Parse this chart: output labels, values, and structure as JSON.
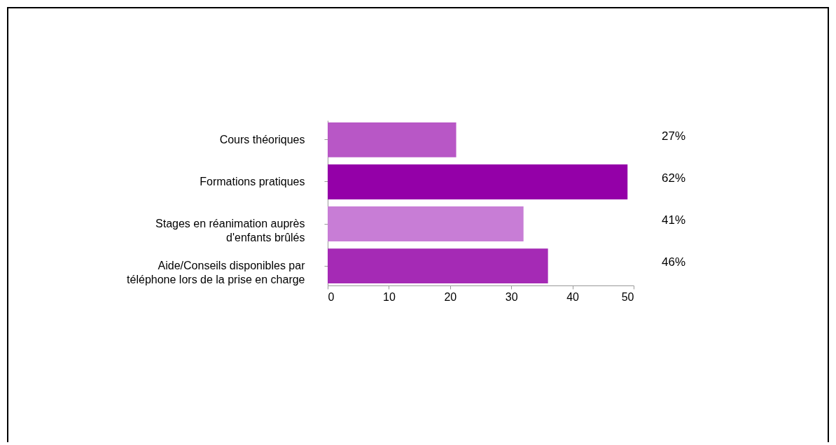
{
  "chart_data": {
    "type": "bar",
    "orientation": "horizontal",
    "categories": [
      "Cours théoriques",
      "Formations pratiques",
      "Stages en réanimation auprès d'enfants brûlés",
      "Aide/Conseils disponibles par téléphone lors de la prise en charge"
    ],
    "values": [
      21,
      49,
      32,
      36
    ],
    "colors": [
      "#b857c6",
      "#9400a8",
      "#c87dd6",
      "#a52ab5"
    ],
    "annotations": [
      "27%",
      "62%",
      "41%",
      "46%"
    ],
    "xlim": [
      0,
      50
    ],
    "xticks": [
      0,
      10,
      20,
      30,
      40,
      50
    ],
    "grid": false
  }
}
